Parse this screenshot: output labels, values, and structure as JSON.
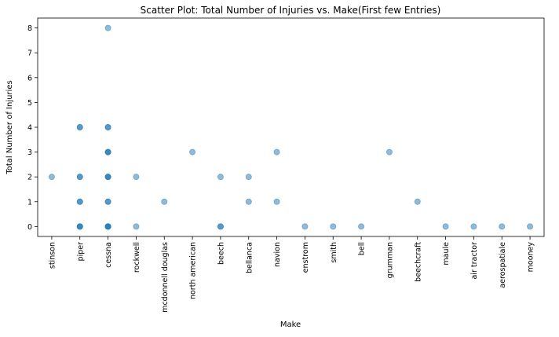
{
  "chart_data": {
    "type": "scatter",
    "title": "Scatter Plot: Total Number of Injuries vs. Make(First few Entries)",
    "xlabel": "Make",
    "ylabel": "Total Number of Injuries",
    "categories": [
      "stinson",
      "piper",
      "cessna",
      "rockwell",
      "mcdonnell douglas",
      "north american",
      "beech",
      "bellanca",
      "navion",
      "enstrom",
      "smith",
      "bell",
      "grumman",
      "beechcraft",
      "maule",
      "air tractor",
      "aerospatiale",
      "mooney"
    ],
    "yticks": [
      0,
      1,
      2,
      3,
      4,
      5,
      6,
      7,
      8
    ],
    "ylim": [
      -0.4,
      8.4
    ],
    "grid": false,
    "marker_color": "#1f77b4",
    "marker_alpha": 0.5,
    "points": [
      {
        "x": "stinson",
        "y": 2
      },
      {
        "x": "piper",
        "y": 4
      },
      {
        "x": "piper",
        "y": 4
      },
      {
        "x": "piper",
        "y": 2
      },
      {
        "x": "piper",
        "y": 2
      },
      {
        "x": "piper",
        "y": 1
      },
      {
        "x": "piper",
        "y": 1
      },
      {
        "x": "piper",
        "y": 0
      },
      {
        "x": "piper",
        "y": 0
      },
      {
        "x": "piper",
        "y": 0
      },
      {
        "x": "cessna",
        "y": 8
      },
      {
        "x": "cessna",
        "y": 4
      },
      {
        "x": "cessna",
        "y": 4
      },
      {
        "x": "cessna",
        "y": 3
      },
      {
        "x": "cessna",
        "y": 3
      },
      {
        "x": "cessna",
        "y": 3
      },
      {
        "x": "cessna",
        "y": 2
      },
      {
        "x": "cessna",
        "y": 2
      },
      {
        "x": "cessna",
        "y": 2
      },
      {
        "x": "cessna",
        "y": 1
      },
      {
        "x": "cessna",
        "y": 1
      },
      {
        "x": "cessna",
        "y": 0
      },
      {
        "x": "cessna",
        "y": 0
      },
      {
        "x": "cessna",
        "y": 0
      },
      {
        "x": "cessna",
        "y": 0
      },
      {
        "x": "rockwell",
        "y": 2
      },
      {
        "x": "rockwell",
        "y": 0
      },
      {
        "x": "mcdonnell douglas",
        "y": 1
      },
      {
        "x": "north american",
        "y": 3
      },
      {
        "x": "beech",
        "y": 2
      },
      {
        "x": "beech",
        "y": 0
      },
      {
        "x": "beech",
        "y": 0
      },
      {
        "x": "bellanca",
        "y": 2
      },
      {
        "x": "bellanca",
        "y": 1
      },
      {
        "x": "navion",
        "y": 3
      },
      {
        "x": "navion",
        "y": 1
      },
      {
        "x": "enstrom",
        "y": 0
      },
      {
        "x": "smith",
        "y": 0
      },
      {
        "x": "bell",
        "y": 0
      },
      {
        "x": "grumman",
        "y": 3
      },
      {
        "x": "beechcraft",
        "y": 1
      },
      {
        "x": "maule",
        "y": 0
      },
      {
        "x": "air tractor",
        "y": 0
      },
      {
        "x": "aerospatiale",
        "y": 0
      },
      {
        "x": "mooney",
        "y": 0
      }
    ]
  }
}
